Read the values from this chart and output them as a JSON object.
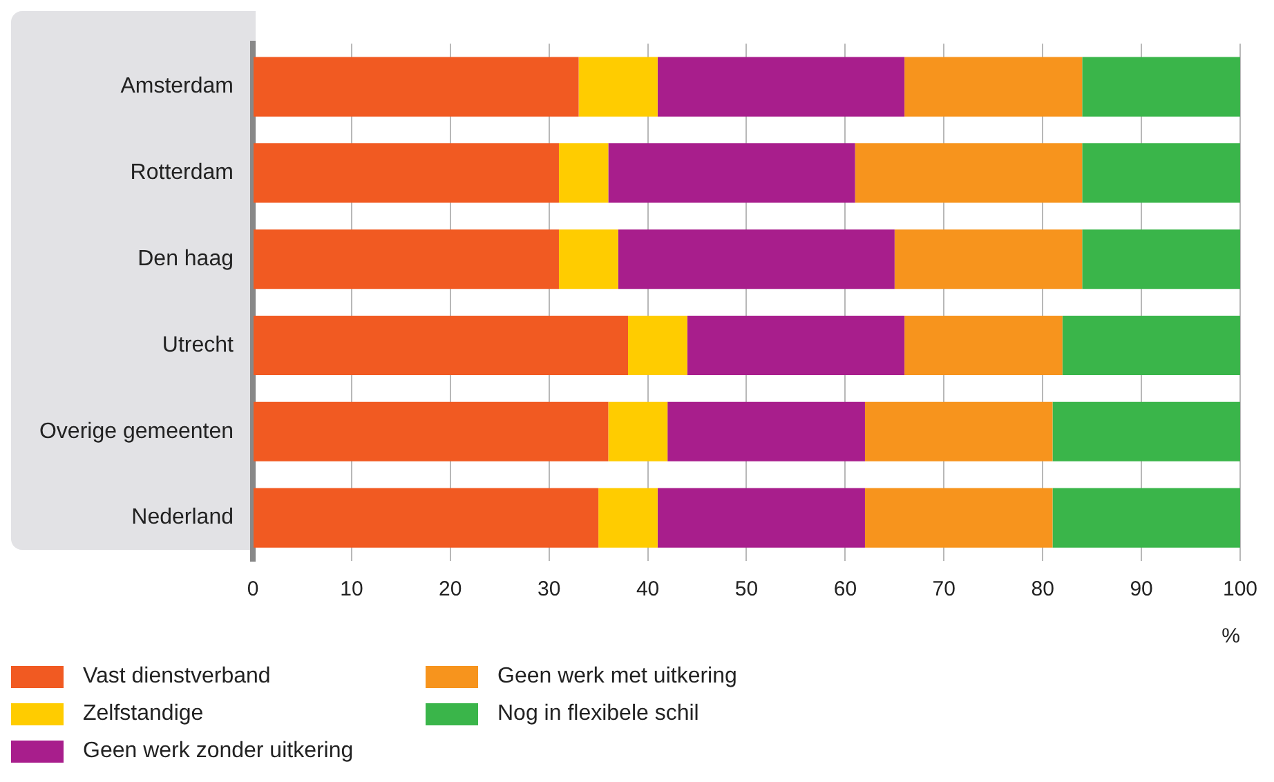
{
  "chart_data": {
    "type": "bar",
    "orientation": "horizontal",
    "stacked": true,
    "xlabel": "%",
    "categories": [
      "Amsterdam",
      "Rotterdam",
      "Den haag",
      "Utrecht",
      "Overige gemeenten",
      "Nederland"
    ],
    "series": [
      {
        "name": "Vast dienstverband",
        "color": "#f15a22",
        "values": [
          33,
          31,
          31,
          38,
          36,
          35
        ]
      },
      {
        "name": "Zelfstandige",
        "color": "#ffcc00",
        "values": [
          8,
          5,
          6,
          6,
          6,
          6
        ]
      },
      {
        "name": "Geen werk zonder uitkering",
        "color": "#a81e8c",
        "values": [
          25,
          25,
          28,
          22,
          20,
          21
        ]
      },
      {
        "name": "Geen werk met uitkering",
        "color": "#f7941d",
        "values": [
          18,
          23,
          19,
          16,
          19,
          19
        ]
      },
      {
        "name": "Nog in flexibele schil",
        "color": "#3ab54a",
        "values": [
          16,
          16,
          16,
          18,
          19,
          19
        ]
      }
    ],
    "xlim": [
      0,
      100
    ],
    "xticks": [
      0,
      10,
      20,
      30,
      40,
      50,
      60,
      70,
      80,
      90,
      100
    ],
    "grid": "x",
    "legend": "bottom"
  }
}
